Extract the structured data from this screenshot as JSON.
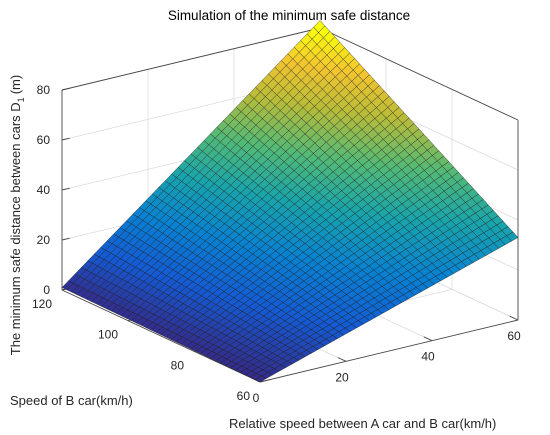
{
  "chart_data": {
    "type": "surface3d",
    "title": "Simulation of the minimum safe distance",
    "xlabel": "Relative speed between A car and B car(km/h)",
    "ylabel": "Speed of B car(km/h)",
    "zlabel": "The minimum safe distance between cars D",
    "zlabel_subscript": "1",
    "zlabel_unit": "(m)",
    "xlim": [
      0,
      60
    ],
    "ylim": [
      60,
      120
    ],
    "zlim": [
      0,
      80
    ],
    "xticks": [
      "0",
      "20",
      "40",
      "60"
    ],
    "yticks": [
      "60",
      "80",
      "100",
      "120"
    ],
    "zticks": [
      "0",
      "20",
      "40",
      "60",
      "80"
    ],
    "colormap": "parula",
    "corner_values": [
      {
        "x": 0,
        "y": 60,
        "z": 0
      },
      {
        "x": 0,
        "y": 120,
        "z": 1
      },
      {
        "x": 60,
        "y": 60,
        "z": 33
      },
      {
        "x": 60,
        "y": 120,
        "z": 83
      }
    ],
    "grid": true
  }
}
